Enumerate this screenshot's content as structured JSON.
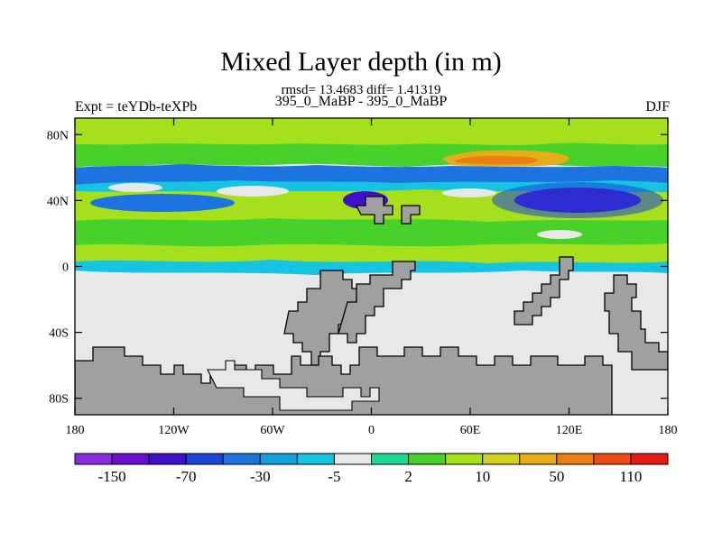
{
  "chart_data": {
    "type": "heatmap",
    "title": "Mixed Layer depth (in m)",
    "stats_line": "rmsd= 13.4683 diff= 1.41319",
    "experiment_line": "395_0_MaBP - 395_0_MaBP",
    "left_label": "Expt = teYDb-teXPb",
    "right_label": "DJF",
    "xlabel": "",
    "ylabel": "",
    "x_range": [
      -180,
      180
    ],
    "y_range": [
      -90,
      90
    ],
    "x_ticks": [
      "180",
      "120W",
      "60W",
      "0",
      "60E",
      "120E",
      "180"
    ],
    "y_ticks": [
      "80N",
      "40N",
      "0",
      "40S",
      "80S"
    ],
    "colorbar": {
      "colors": [
        "#8a2be2",
        "#6a0dcc",
        "#4010c8",
        "#1c44d8",
        "#1d74e0",
        "#12a0e0",
        "#14c4e0",
        "#e8e8e8",
        "#1ed890",
        "#48d12a",
        "#a6df1c",
        "#d2d020",
        "#e6ad18",
        "#ec7d10",
        "#ec4c12",
        "#e61c14"
      ],
      "labels": [
        "-150",
        "-70",
        "-30",
        "-5",
        "2",
        "10",
        "50",
        "110"
      ]
    },
    "land_color": "#a0a0a0",
    "neutral_color": "#e8e8e8"
  }
}
